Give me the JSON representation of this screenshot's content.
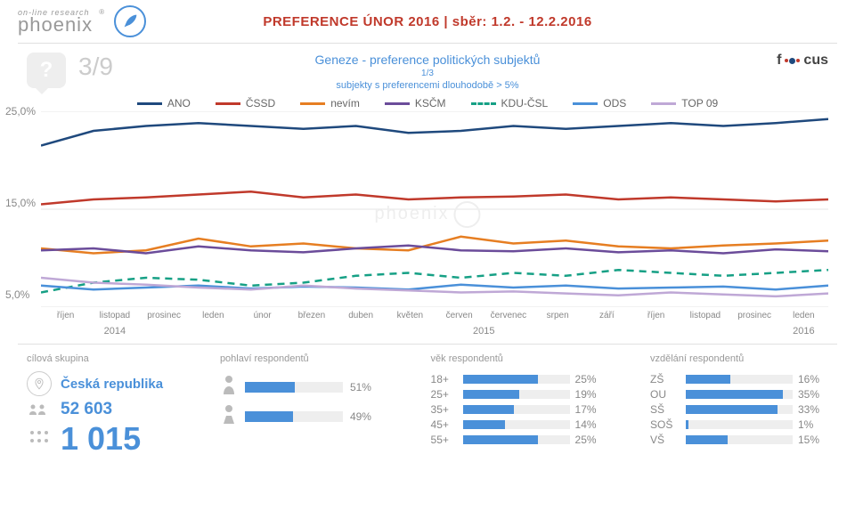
{
  "header": {
    "logo_small": "on-line research",
    "logo_big": "phoenix",
    "reg_mark": "®",
    "title": "PREFERENCE ÚNOR 2016 | sběr: 1.2. - 12.2.2016"
  },
  "subheader": {
    "question_mark": "?",
    "slide": "3/9",
    "title": "Geneze - preference politických subjektů",
    "fraction": "1/3",
    "subtitle": "subjekty s preferencemi dlouhodobě > 5%",
    "focus_label": "f   cus"
  },
  "chart": {
    "type": "line",
    "ylim": [
      5,
      25
    ],
    "yticks": [
      25,
      15,
      5
    ],
    "ytick_labels": [
      "25,0%",
      "15,0%",
      "5,0%"
    ],
    "grid_color": "#e5e5e5",
    "background_color": "#ffffff",
    "x_categories": [
      "říjen",
      "listopad",
      "prosinec",
      "leden",
      "únor",
      "březen",
      "duben",
      "květen",
      "červen",
      "červenec",
      "srpen",
      "září",
      "říjen",
      "listopad",
      "prosinec",
      "leden"
    ],
    "year_groups": [
      {
        "label": "2014",
        "span": 3
      },
      {
        "label": "2015",
        "span": 12
      },
      {
        "label": "2016",
        "span": 1
      }
    ],
    "series": [
      {
        "name": "ANO",
        "color": "#1f497d",
        "style": "solid",
        "values": [
          21.5,
          23.0,
          23.5,
          23.8,
          23.5,
          23.2,
          23.5,
          22.8,
          23.0,
          23.5,
          23.2,
          23.5,
          23.8,
          23.5,
          23.8,
          24.2
        ]
      },
      {
        "name": "ČSSD",
        "color": "#c0392b",
        "style": "solid",
        "values": [
          15.5,
          16.0,
          16.2,
          16.5,
          16.8,
          16.2,
          16.5,
          16.0,
          16.2,
          16.3,
          16.5,
          16.0,
          16.2,
          16.0,
          15.8,
          16.0
        ]
      },
      {
        "name": "nevím",
        "color": "#e67e22",
        "style": "solid",
        "values": [
          11.0,
          10.5,
          10.8,
          12.0,
          11.2,
          11.5,
          11.0,
          10.8,
          12.2,
          11.5,
          11.8,
          11.2,
          11.0,
          11.3,
          11.5,
          11.8
        ]
      },
      {
        "name": "KSČM",
        "color": "#6b4c9a",
        "style": "solid",
        "values": [
          10.8,
          11.0,
          10.5,
          11.2,
          10.8,
          10.6,
          11.0,
          11.3,
          10.8,
          10.7,
          11.0,
          10.6,
          10.8,
          10.5,
          10.9,
          10.7
        ]
      },
      {
        "name": "KDU-ČSL",
        "color": "#16a085",
        "style": "dashed",
        "values": [
          6.5,
          7.5,
          8.0,
          7.8,
          7.2,
          7.5,
          8.2,
          8.5,
          8.0,
          8.5,
          8.2,
          8.8,
          8.5,
          8.2,
          8.5,
          8.8
        ]
      },
      {
        "name": "ODS",
        "color": "#4a90d9",
        "style": "solid",
        "values": [
          7.2,
          6.8,
          7.0,
          7.2,
          6.9,
          7.1,
          7.0,
          6.8,
          7.3,
          7.0,
          7.2,
          6.9,
          7.0,
          7.1,
          6.8,
          7.2
        ]
      },
      {
        "name": "TOP 09",
        "color": "#bfa8d6",
        "style": "solid",
        "values": [
          8.0,
          7.5,
          7.3,
          7.0,
          6.8,
          7.2,
          6.9,
          6.7,
          6.5,
          6.6,
          6.4,
          6.2,
          6.5,
          6.3,
          6.1,
          6.4
        ]
      }
    ],
    "line_width": 2.5
  },
  "footer": {
    "col1_head": "cílová skupina",
    "country": "Česká republika",
    "n1": "52 603",
    "n2": "1 015",
    "col2_head": "pohlaví respondentů",
    "gender": [
      {
        "label": "♂",
        "pct": 51
      },
      {
        "label": "♀",
        "pct": 49
      }
    ],
    "col3_head": "věk respondentů",
    "age": [
      {
        "label": "18+",
        "pct": 25
      },
      {
        "label": "25+",
        "pct": 19
      },
      {
        "label": "35+",
        "pct": 17
      },
      {
        "label": "45+",
        "pct": 14
      },
      {
        "label": "55+",
        "pct": 25
      }
    ],
    "col4_head": "vzdělání respondentů",
    "edu": [
      {
        "label": "ZŠ",
        "pct": 16
      },
      {
        "label": "OU",
        "pct": 35
      },
      {
        "label": "SŠ",
        "pct": 33
      },
      {
        "label": "SOŠ",
        "pct": 1
      },
      {
        "label": "VŠ",
        "pct": 15
      }
    ],
    "bar_color": "#4a90d9",
    "bar_bg": "#eeeeee"
  }
}
